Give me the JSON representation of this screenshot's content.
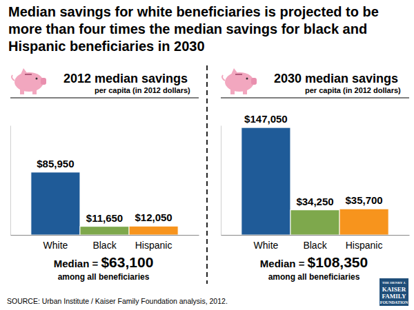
{
  "title": "Median savings for white beneficiaries is projected to be more than four times the median savings for black and Hispanic beneficiaries in 2030",
  "source": "SOURCE: Urban Institute / Kaiser Family Foundation analysis, 2012.",
  "logo": [
    "THE HENRY J.",
    "KAISER",
    "FAMILY",
    "FOUNDATION"
  ],
  "chart_data": [
    {
      "type": "bar",
      "title": "2012 median savings",
      "subtitle": "per capita (in 2012 dollars)",
      "categories": [
        "White",
        "Black",
        "Hispanic"
      ],
      "values": [
        85950,
        11650,
        12050
      ],
      "value_labels": [
        "$85,950",
        "$11,650",
        "$12,050"
      ],
      "colors": [
        "#1f5b98",
        "#7ea84c",
        "#f7941d"
      ],
      "ylim": [
        0,
        150000
      ],
      "yticks": [],
      "data_labels": true,
      "tick_labels": "x",
      "annotation": "Median = ",
      "median": {
        "value": 63100,
        "label": "$63,100"
      },
      "note": "among all beneficiaries"
    },
    {
      "type": "bar",
      "title": "2030 median savings",
      "subtitle": "per capita (in 2012 dollars)",
      "categories": [
        "White",
        "Black",
        "Hispanic"
      ],
      "values": [
        147050,
        34250,
        35700
      ],
      "value_labels": [
        "$147,050",
        "$34,250",
        "$35,700"
      ],
      "colors": [
        "#1f5b98",
        "#7ea84c",
        "#f7941d"
      ],
      "ylim": [
        0,
        150000
      ],
      "yticks": [],
      "data_labels": true,
      "tick_labels": "x",
      "annotation": "Median = ",
      "median": {
        "value": 108350,
        "label": "$108,350"
      },
      "note": "among all beneficiaries"
    }
  ]
}
